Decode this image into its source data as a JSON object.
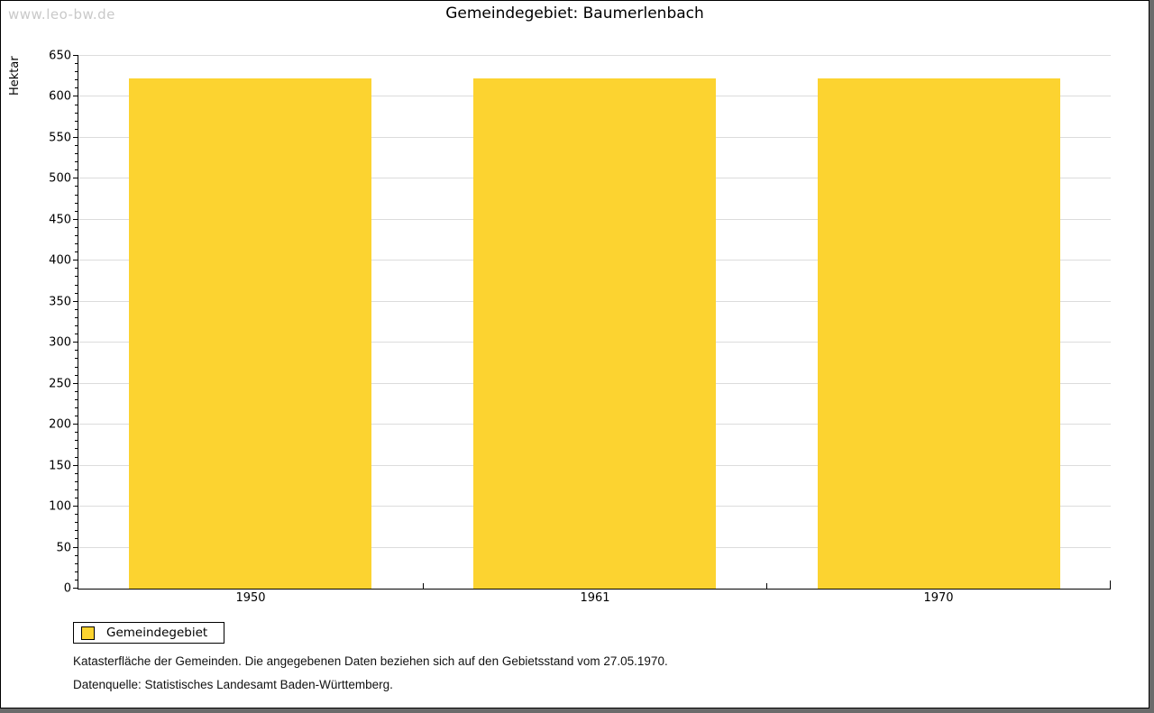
{
  "watermark": "www.leo-bw.de",
  "title": "Gemeindegebiet: Baumerlenbach",
  "chart_data": {
    "type": "bar",
    "title": "Gemeindegebiet: Baumerlenbach",
    "categories": [
      "1950",
      "1961",
      "1970"
    ],
    "series": [
      {
        "name": "Gemeindegebiet",
        "values": [
          622,
          622,
          622
        ]
      }
    ],
    "xlabel": "",
    "ylabel": "Hektar",
    "ylim": [
      0,
      650
    ],
    "y_major_step": 50,
    "y_minor_step": 10,
    "grid": true,
    "legend_position": "bottom-left",
    "bar_color": "#fcd330"
  },
  "legend": {
    "items": [
      {
        "label": "Gemeindegebiet",
        "color": "#fcd330"
      }
    ]
  },
  "footer": {
    "line1": "Katasterfläche der Gemeinden. Die angegebenen Daten beziehen sich auf den Gebietsstand vom 27.05.1970.",
    "line2": "Datenquelle: Statistisches Landesamt Baden-Württemberg."
  },
  "colors": {
    "bar": "#fcd330",
    "gridline": "#dcdcdc",
    "axis": "#000000",
    "watermark": "#c9c9c9",
    "frame_shadow": "#6b6b6b",
    "background": "#ffffff"
  }
}
